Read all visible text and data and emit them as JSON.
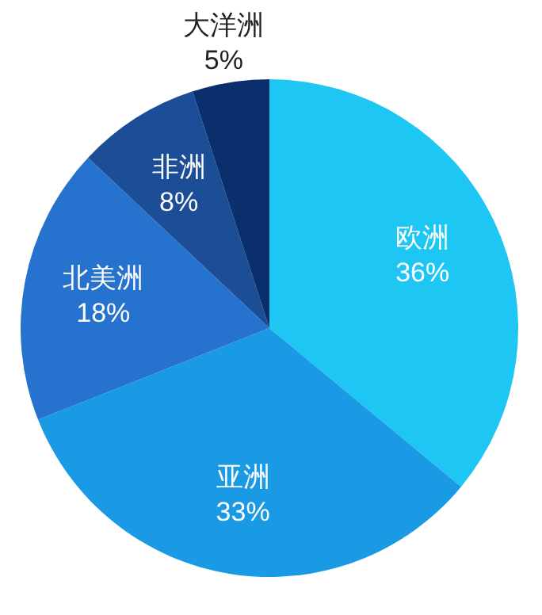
{
  "chart_data": {
    "type": "pie",
    "categories": [
      "欧洲",
      "亚洲",
      "北美洲",
      "非洲",
      "大洋洲"
    ],
    "values": [
      36,
      33,
      18,
      8,
      5
    ],
    "colors": [
      "#1ec6f4",
      "#1a9ae4",
      "#2673cf",
      "#1b4e96",
      "#0b2e6c"
    ],
    "value_labels": [
      "36%",
      "33%",
      "18%",
      "8%",
      "5%"
    ]
  }
}
